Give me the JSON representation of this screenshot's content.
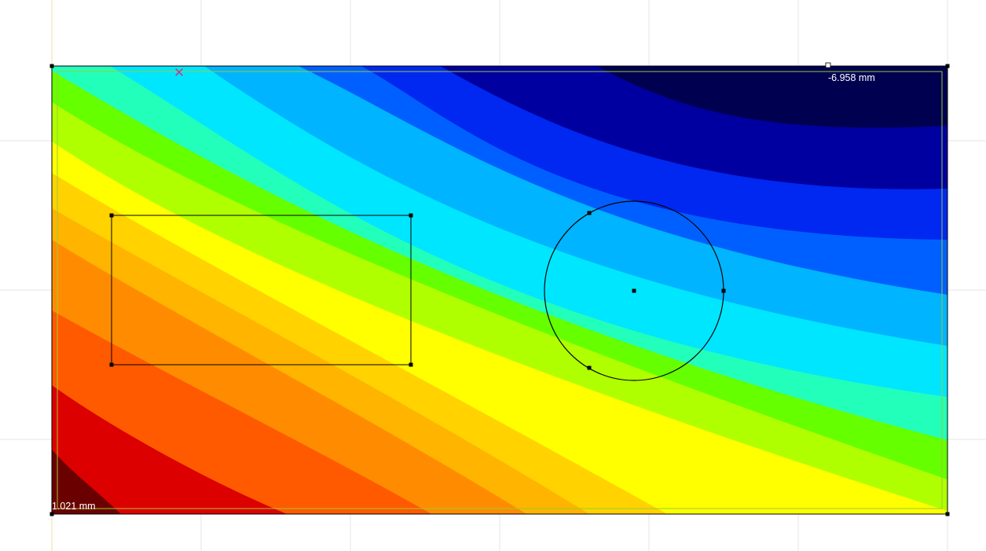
{
  "viewport": {
    "background": "#ffffff",
    "grid_color": "#e6e6e6",
    "origin_marker_color": "#f2dfa6"
  },
  "result_plot": {
    "type": "contour",
    "max_label": "-6.958 mm",
    "min_label": "1.021 mm",
    "colormap": [
      "#6b0000",
      "#a80000",
      "#dc0000",
      "#ff5a00",
      "#ff8c00",
      "#ffb400",
      "#ffd200",
      "#ffff00",
      "#b0ff00",
      "#66ff00",
      "#22ffbb",
      "#00e6ff",
      "#00b4ff",
      "#0060ff",
      "#0028f0",
      "#0000a0",
      "#000050"
    ],
    "boundary_color": "#000000",
    "inner_outline_color": "#9acd32"
  },
  "shapes": {
    "rectangle": {
      "stroke": "#000000"
    },
    "circle": {
      "stroke": "#000000"
    }
  },
  "marker": {
    "icon": "cross-marker-icon",
    "glyph": "✕",
    "color": "#c0408a"
  }
}
